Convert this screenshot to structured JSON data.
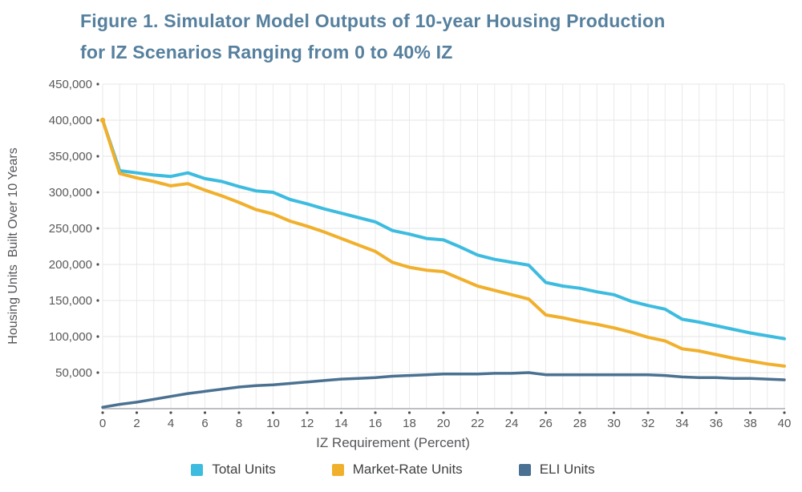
{
  "figure": {
    "title_line1": "Figure 1. Simulator Model Outputs of 10-year Housing Production",
    "title_line2": "for IZ Scenarios Ranging from 0 to 40% IZ",
    "title_color": "#56809E"
  },
  "chart_data": {
    "type": "line",
    "title": "Figure 1. Simulator Model Outputs of 10-year Housing Production for IZ Scenarios Ranging from 0 to 40% IZ",
    "xlabel": "IZ Requirement (Percent)",
    "ylabel": "Housing Units  Built Over 10 Years",
    "x": [
      0,
      1,
      2,
      3,
      4,
      5,
      6,
      7,
      8,
      9,
      10,
      11,
      12,
      13,
      14,
      15,
      16,
      17,
      18,
      19,
      20,
      21,
      22,
      23,
      24,
      25,
      26,
      27,
      28,
      29,
      30,
      31,
      32,
      33,
      34,
      35,
      36,
      37,
      38,
      39,
      40
    ],
    "xlim": [
      0,
      40
    ],
    "ylim": [
      0,
      450000
    ],
    "xtick_step": 2,
    "ytick_step": 50000,
    "grid": true,
    "legend_position": "bottom",
    "series": [
      {
        "name": "Total Units",
        "color": "#3DBCE0",
        "values": [
          400000,
          330000,
          327000,
          324000,
          322000,
          327000,
          319000,
          315000,
          308000,
          302000,
          300000,
          290000,
          284000,
          277000,
          271000,
          265000,
          259000,
          247000,
          242000,
          236000,
          234000,
          224000,
          213000,
          207000,
          203000,
          199000,
          175000,
          170000,
          167000,
          162000,
          158000,
          149000,
          143000,
          138000,
          124000,
          120000,
          115000,
          110000,
          105000,
          101000,
          97000
        ]
      },
      {
        "name": "Market-Rate Units",
        "color": "#F1B02C",
        "values": [
          400000,
          326000,
          320000,
          315000,
          309000,
          312000,
          303000,
          295000,
          286000,
          276000,
          270000,
          260000,
          253000,
          245000,
          236000,
          227000,
          218000,
          203000,
          196000,
          192000,
          190000,
          180000,
          170000,
          164000,
          158000,
          152000,
          130000,
          126000,
          121000,
          117000,
          112000,
          106000,
          99000,
          94000,
          83000,
          80000,
          75000,
          70000,
          66000,
          62000,
          59000
        ]
      },
      {
        "name": "ELI Units",
        "color": "#4A7191",
        "values": [
          2000,
          6000,
          9000,
          13000,
          17000,
          21000,
          24000,
          27000,
          30000,
          32000,
          33000,
          35000,
          37000,
          39000,
          41000,
          42000,
          43000,
          45000,
          46000,
          47000,
          48000,
          48000,
          48000,
          49000,
          49000,
          50000,
          47000,
          47000,
          47000,
          47000,
          47000,
          47000,
          47000,
          46000,
          44000,
          43000,
          43000,
          42000,
          42000,
          41000,
          40000
        ]
      }
    ],
    "style": {
      "gridline_color": "#E6E6E6",
      "axis_line_color": "#A8AAAD",
      "tick_dot_color": "#4D4D4F",
      "tick_label_color": "#58595B"
    }
  }
}
